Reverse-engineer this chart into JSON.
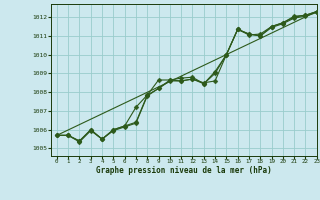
{
  "xlabel": "Graphe pression niveau de la mer (hPa)",
  "background_color": "#cce8ee",
  "grid_color": "#99cccc",
  "line_color": "#2d5a1b",
  "text_color": "#1a3a0a",
  "xlim": [
    -0.5,
    23
  ],
  "ylim": [
    1004.6,
    1012.7
  ],
  "xticks": [
    0,
    1,
    2,
    3,
    4,
    5,
    6,
    7,
    8,
    9,
    10,
    11,
    12,
    13,
    14,
    15,
    16,
    17,
    18,
    19,
    20,
    21,
    22,
    23
  ],
  "yticks": [
    1005,
    1006,
    1007,
    1008,
    1009,
    1010,
    1011,
    1012
  ],
  "line1_x": [
    0,
    1,
    2,
    3,
    4,
    5,
    6,
    7,
    8,
    9,
    10,
    11,
    12,
    13,
    14,
    15,
    16,
    17,
    18,
    19,
    20,
    21,
    22,
    23
  ],
  "line1_y": [
    1005.7,
    1005.7,
    1005.4,
    1006.0,
    1005.5,
    1006.0,
    1006.2,
    1006.4,
    1007.85,
    1008.2,
    1008.65,
    1008.6,
    1008.7,
    1008.5,
    1008.6,
    1010.0,
    1011.35,
    1011.1,
    1011.0,
    1011.5,
    1011.7,
    1012.0,
    1012.1,
    1012.3
  ],
  "line2_x": [
    0,
    1,
    2,
    3,
    4,
    5,
    6,
    7,
    8,
    9,
    10,
    11,
    12,
    13,
    14,
    15,
    16,
    17,
    18,
    19,
    20,
    21,
    22,
    23
  ],
  "line2_y": [
    1005.7,
    1005.7,
    1005.4,
    1006.0,
    1005.5,
    1006.0,
    1006.2,
    1007.2,
    1007.85,
    1008.65,
    1008.65,
    1008.75,
    1008.8,
    1008.45,
    1009.1,
    1010.0,
    1011.35,
    1011.05,
    1011.1,
    1011.5,
    1011.7,
    1012.05,
    1012.1,
    1012.3
  ],
  "line3_x": [
    0,
    1,
    2,
    3,
    4,
    5,
    6,
    7,
    8,
    9,
    10,
    11,
    12,
    13,
    14,
    15,
    16,
    17,
    18,
    19,
    20,
    21,
    22,
    23
  ],
  "line3_y": [
    1005.7,
    1005.7,
    1005.35,
    1005.95,
    1005.5,
    1005.95,
    1006.15,
    1006.35,
    1007.8,
    1008.2,
    1008.6,
    1008.6,
    1008.7,
    1008.45,
    1009.0,
    1010.0,
    1011.35,
    1011.1,
    1011.0,
    1011.45,
    1011.65,
    1011.95,
    1012.05,
    1012.25
  ],
  "trend_x": [
    0,
    23
  ],
  "trend_y": [
    1005.7,
    1012.3
  ],
  "marker_size": 2.5,
  "line_width": 0.8
}
